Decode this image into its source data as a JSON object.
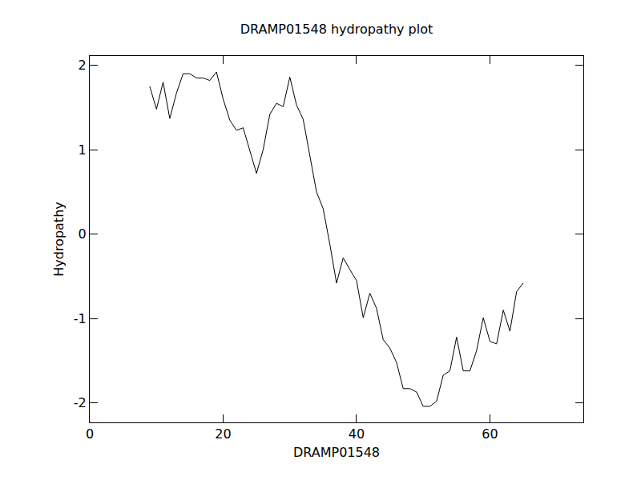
{
  "chart_data": {
    "type": "line",
    "title": "DRAMP01548 hydropathy plot",
    "x_label": "DRAMP01548",
    "y_label": "Hydropathy",
    "x": [
      9,
      10,
      11,
      12,
      13,
      14,
      15,
      16,
      17,
      18,
      19,
      20,
      21,
      22,
      23,
      24,
      25,
      26,
      27,
      28,
      29,
      30,
      31,
      32,
      33,
      34,
      35,
      36,
      37,
      38,
      39,
      40,
      41,
      42,
      43,
      44,
      45,
      46,
      47,
      48,
      49,
      50,
      51,
      52,
      53,
      54,
      55,
      56,
      57,
      58,
      59,
      60,
      61,
      62,
      63,
      64,
      65
    ],
    "series": [
      {
        "name": "DRAMP01548",
        "color": "#000000",
        "values": [
          1.75,
          1.48,
          1.8,
          1.37,
          1.67,
          1.9,
          1.9,
          1.85,
          1.85,
          1.82,
          1.92,
          1.6,
          1.35,
          1.23,
          1.26,
          1.0,
          0.72,
          1.0,
          1.42,
          1.55,
          1.51,
          1.86,
          1.53,
          1.36,
          0.92,
          0.5,
          0.3,
          -0.12,
          -0.58,
          -0.28,
          -0.42,
          -0.55,
          -0.99,
          -0.7,
          -0.88,
          -1.25,
          -1.35,
          -1.52,
          -1.83,
          -1.83,
          -1.87,
          -2.04,
          -2.04,
          -1.98,
          -1.67,
          -1.62,
          -1.22,
          -1.62,
          -1.62,
          -1.38,
          -0.99,
          -1.27,
          -1.3,
          -0.9,
          -1.15,
          -0.68,
          -0.58
        ]
      }
    ],
    "xlim": [
      0,
      74
    ],
    "xticks": [
      0,
      20,
      40,
      60
    ],
    "ylim": [
      -2.23,
      2.11
    ],
    "yticks": [
      -2,
      -1,
      0,
      1,
      2
    ],
    "grid": false
  }
}
